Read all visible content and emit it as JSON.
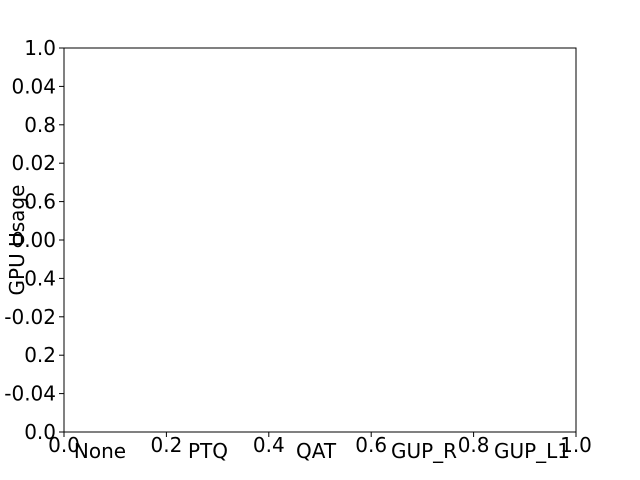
{
  "chart_data": {
    "type": "bar",
    "title": "",
    "xlabel": "",
    "ylabel": "GPU Usage",
    "categories": [
      "None",
      "PTQ",
      "QAT",
      "GUP_R",
      "GUP_L1"
    ],
    "series": [],
    "ylim": [
      -0.05,
      0.05
    ],
    "yticks": [
      "-0.04",
      "-0.02",
      "0.00",
      "0.02",
      "0.04"
    ],
    "overlay_axes": {
      "xlim": [
        0.0,
        1.0
      ],
      "ylim": [
        0.0,
        1.0
      ],
      "xticks": [
        "0.0",
        "0.2",
        "0.4",
        "0.6",
        "0.8",
        "1.0"
      ],
      "yticks": [
        "0.0",
        "0.2",
        "0.4",
        "0.6",
        "0.8",
        "1.0"
      ]
    },
    "grid": false,
    "legend": "none",
    "colors": {
      "axes": "#000000",
      "background": "#ffffff"
    }
  }
}
